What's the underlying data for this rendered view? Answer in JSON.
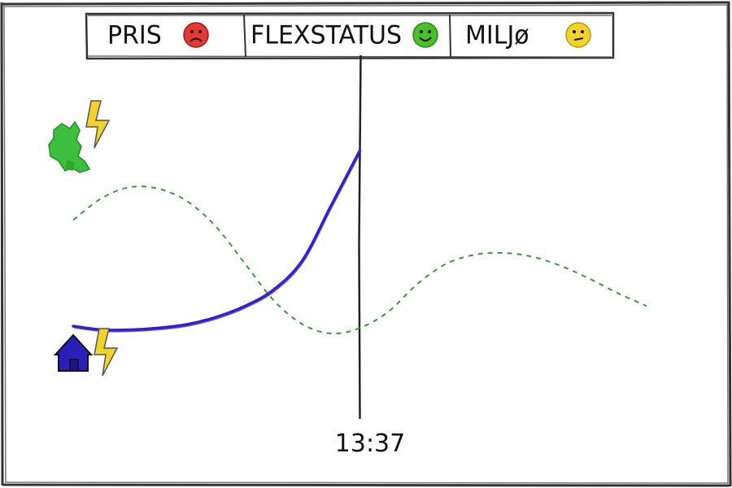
{
  "header": {
    "items": [
      {
        "label": "PRIS",
        "status": "negative",
        "face_color": "#e53935"
      },
      {
        "label": "FLEXSTATUS",
        "status": "positive",
        "face_color": "#4bbf2a"
      },
      {
        "label": "MILJø",
        "status": "neutral",
        "face_color": "#f2d32a"
      }
    ]
  },
  "time": "13:37",
  "legend": {
    "grid_icon": "denmark-grid-lightning-icon",
    "home_icon": "house-lightning-icon"
  },
  "colors": {
    "grid_curve": "#3a9a3a",
    "consumption_curve": "#3322cc",
    "lightning": "#f2d32a",
    "house": "#2a1fb8",
    "ink": "#222222"
  },
  "chart_data": {
    "type": "line",
    "series": [
      {
        "style": "dashed",
        "color": "#3a9a3a",
        "x": [
          0,
          5,
          10,
          15,
          20,
          25,
          30,
          35,
          40,
          45,
          50,
          55,
          60,
          65,
          70,
          75,
          80,
          85,
          90,
          95,
          100
        ],
        "values": [
          0.62,
          0.74,
          0.8,
          0.79,
          0.72,
          0.58,
          0.38,
          0.18,
          0.05,
          0.0,
          0.03,
          0.12,
          0.27,
          0.38,
          0.43,
          0.44,
          0.42,
          0.37,
          0.3,
          0.22,
          0.15
        ]
      },
      {
        "style": "solid",
        "color": "#3322cc",
        "x": [
          0,
          5,
          10,
          15,
          20,
          25,
          30,
          35,
          40,
          45,
          50
        ],
        "values": [
          0.04,
          0.02,
          0.02,
          0.03,
          0.05,
          0.09,
          0.15,
          0.24,
          0.4,
          0.7,
          1.0
        ]
      }
    ],
    "now_marker_x": 50,
    "xlim": [
      0,
      100
    ],
    "ylim": [
      0,
      1
    ],
    "grid": false
  }
}
